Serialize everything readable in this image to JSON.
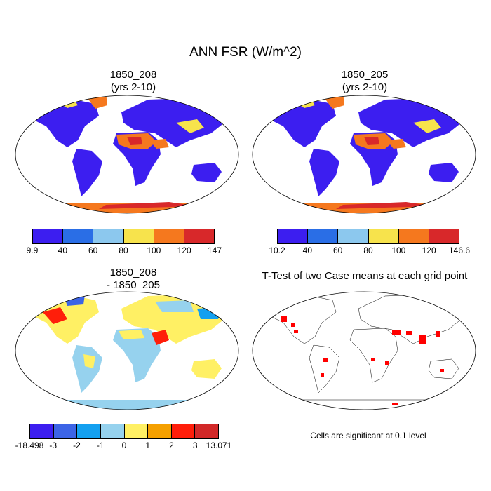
{
  "title": "ANN FSR (W/m^2)",
  "panels": {
    "p1": {
      "line1": "1850_208",
      "line2": "(yrs 2-10)"
    },
    "p2": {
      "line1": "1850_205",
      "line2": "(yrs 2-10)"
    },
    "p3": {
      "line1": "1850_208",
      "line2": "- 1850_205"
    },
    "p4": {
      "line1": "T-Test of two Case means at each grid point"
    }
  },
  "colorbars": {
    "cb1": {
      "colors": [
        "#3c1ef0",
        "#2a6ee6",
        "#8cc8ee",
        "#f7e34c",
        "#f5781e",
        "#d8282a"
      ],
      "ticks": [
        "9.9",
        "40",
        "60",
        "80",
        "100",
        "120",
        "147"
      ]
    },
    "cb2": {
      "colors": [
        "#3c1ef0",
        "#2a6ee6",
        "#8cc8ee",
        "#f7e34c",
        "#f5781e",
        "#d8282a"
      ],
      "ticks": [
        "10.2",
        "40",
        "60",
        "80",
        "100",
        "120",
        "146.6"
      ]
    },
    "cb3": {
      "colors": [
        "#3c1ef0",
        "#3c64e6",
        "#14a0f0",
        "#96d2ee",
        "#fff064",
        "#f5a000",
        "#ff1e0a",
        "#d22828"
      ],
      "ticks": [
        "-18.498",
        "-3",
        "-2",
        "-1",
        "0",
        "1",
        "2",
        "3",
        "13.071"
      ]
    }
  },
  "significance_note": "Cells are significant at 0.1 level"
}
